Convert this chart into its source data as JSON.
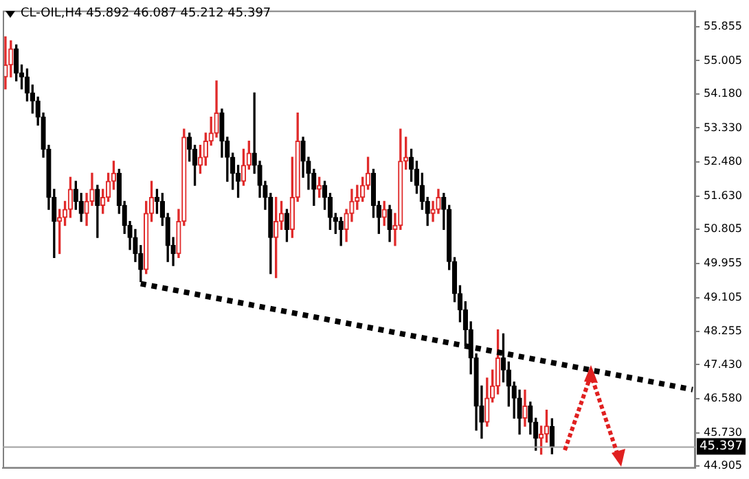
{
  "chart_data": {
    "type": "candlestick",
    "title": "CL-OIL,H4 45.892 46.087 45.212 45.397",
    "categories": [
      null,
      null,
      null,
      null,
      null,
      null,
      null,
      null,
      null,
      null,
      null,
      null,
      null,
      null,
      null,
      null,
      null,
      null,
      null,
      null,
      null,
      null,
      null,
      null,
      null,
      null,
      null,
      null,
      null,
      null,
      null,
      null,
      null,
      null,
      null,
      null,
      null,
      null,
      null,
      null,
      null,
      null,
      null,
      null,
      null,
      null,
      null,
      null,
      null,
      null,
      null,
      null,
      null,
      null,
      null,
      null,
      null,
      null,
      null,
      null,
      null,
      null,
      null,
      null,
      null,
      null,
      null,
      null,
      null,
      null,
      null,
      null,
      null,
      null,
      null,
      null,
      null,
      null,
      null,
      null,
      null,
      null,
      null,
      null,
      null,
      null,
      null,
      null,
      null,
      null,
      null,
      null,
      null,
      null,
      null,
      null,
      null,
      null,
      null,
      null,
      null,
      null,
      null,
      null,
      null,
      null,
      null,
      null,
      null,
      null,
      null,
      null,
      null,
      null,
      null,
      null,
      null,
      null,
      null,
      null,
      null,
      null,
      null,
      null,
      null,
      null,
      null,
      null
    ],
    "ohlc": [
      [
        54.6,
        55.6,
        54.3,
        54.9
      ],
      [
        54.9,
        55.5,
        54.6,
        55.3
      ],
      [
        55.3,
        55.4,
        54.5,
        54.7
      ],
      [
        54.7,
        54.9,
        54.3,
        54.6
      ],
      [
        54.6,
        54.8,
        54.0,
        54.2
      ],
      [
        54.2,
        54.4,
        53.7,
        54.0
      ],
      [
        54.0,
        54.1,
        53.4,
        53.6
      ],
      [
        53.6,
        53.7,
        52.6,
        52.8
      ],
      [
        52.8,
        52.9,
        51.3,
        51.6
      ],
      [
        51.6,
        51.8,
        50.1,
        51.0
      ],
      [
        51.0,
        51.3,
        50.2,
        51.1
      ],
      [
        51.1,
        51.5,
        50.9,
        51.3
      ],
      [
        51.3,
        52.1,
        51.1,
        51.8
      ],
      [
        51.8,
        52.0,
        51.3,
        51.5
      ],
      [
        51.5,
        51.7,
        51.0,
        51.2
      ],
      [
        51.2,
        51.7,
        50.9,
        51.5
      ],
      [
        51.5,
        52.2,
        51.4,
        51.8
      ],
      [
        51.8,
        51.9,
        50.6,
        51.4
      ],
      [
        51.4,
        51.8,
        51.2,
        51.6
      ],
      [
        51.6,
        52.2,
        51.5,
        52.0
      ],
      [
        52.0,
        52.5,
        51.8,
        52.2
      ],
      [
        52.2,
        52.3,
        51.2,
        51.4
      ],
      [
        51.4,
        51.5,
        50.7,
        50.9
      ],
      [
        50.9,
        51.0,
        50.3,
        50.6
      ],
      [
        50.6,
        50.8,
        50.0,
        50.2
      ],
      [
        50.2,
        50.4,
        49.5,
        49.8
      ],
      [
        49.8,
        51.5,
        49.7,
        51.2
      ],
      [
        51.2,
        52.0,
        51.0,
        51.6
      ],
      [
        51.6,
        51.8,
        51.2,
        51.5
      ],
      [
        51.5,
        51.7,
        50.9,
        51.1
      ],
      [
        51.1,
        51.2,
        50.0,
        50.4
      ],
      [
        50.4,
        50.6,
        49.9,
        50.2
      ],
      [
        50.2,
        51.3,
        50.1,
        51.0
      ],
      [
        51.0,
        53.3,
        50.9,
        53.1
      ],
      [
        53.1,
        53.2,
        52.5,
        52.8
      ],
      [
        52.8,
        52.9,
        51.9,
        52.4
      ],
      [
        52.4,
        52.9,
        52.2,
        52.6
      ],
      [
        52.6,
        53.2,
        52.4,
        53.0
      ],
      [
        53.0,
        53.6,
        52.9,
        53.2
      ],
      [
        53.2,
        54.5,
        53.1,
        53.7
      ],
      [
        53.7,
        53.8,
        52.6,
        53.0
      ],
      [
        53.0,
        53.1,
        52.0,
        52.6
      ],
      [
        52.6,
        52.7,
        51.8,
        52.2
      ],
      [
        52.2,
        52.4,
        51.6,
        52.0
      ],
      [
        52.0,
        52.8,
        51.9,
        52.4
      ],
      [
        52.4,
        53.0,
        52.3,
        52.7
      ],
      [
        52.7,
        54.2,
        52.2,
        52.4
      ],
      [
        52.4,
        52.5,
        51.6,
        51.9
      ],
      [
        51.9,
        52.0,
        51.3,
        51.6
      ],
      [
        51.6,
        51.7,
        49.7,
        50.6
      ],
      [
        50.6,
        51.6,
        49.6,
        51.0
      ],
      [
        51.0,
        51.5,
        50.8,
        51.2
      ],
      [
        51.2,
        51.3,
        50.5,
        50.8
      ],
      [
        50.8,
        52.6,
        50.6,
        51.6
      ],
      [
        51.6,
        53.7,
        51.5,
        53.0
      ],
      [
        53.0,
        53.1,
        52.1,
        52.5
      ],
      [
        52.5,
        52.6,
        51.8,
        52.2
      ],
      [
        52.2,
        52.3,
        51.4,
        51.8
      ],
      [
        51.8,
        52.1,
        51.6,
        51.9
      ],
      [
        51.9,
        52.0,
        51.3,
        51.6
      ],
      [
        51.6,
        51.7,
        50.8,
        51.1
      ],
      [
        51.1,
        51.2,
        50.7,
        51.0
      ],
      [
        51.0,
        51.1,
        50.4,
        50.8
      ],
      [
        50.8,
        51.3,
        50.5,
        51.2
      ],
      [
        51.2,
        51.8,
        51.0,
        51.5
      ],
      [
        51.5,
        51.9,
        51.3,
        51.6
      ],
      [
        51.6,
        52.1,
        51.5,
        51.9
      ],
      [
        51.9,
        52.6,
        51.8,
        52.2
      ],
      [
        52.2,
        52.3,
        51.1,
        51.4
      ],
      [
        51.4,
        51.5,
        50.7,
        51.1
      ],
      [
        51.1,
        51.5,
        50.9,
        51.3
      ],
      [
        51.3,
        51.4,
        50.5,
        50.8
      ],
      [
        50.8,
        51.2,
        50.4,
        50.9
      ],
      [
        50.9,
        53.3,
        50.8,
        52.5
      ],
      [
        52.5,
        53.1,
        52.3,
        52.6
      ],
      [
        52.6,
        52.8,
        52.0,
        52.3
      ],
      [
        52.3,
        52.5,
        51.7,
        51.9
      ],
      [
        51.9,
        52.2,
        51.3,
        51.5
      ],
      [
        51.5,
        51.6,
        50.9,
        51.2
      ],
      [
        51.2,
        51.5,
        51.0,
        51.3
      ],
      [
        51.3,
        51.8,
        51.2,
        51.6
      ],
      [
        51.6,
        51.7,
        50.8,
        51.3
      ],
      [
        51.3,
        51.4,
        49.8,
        50.0
      ],
      [
        50.0,
        50.1,
        49.0,
        49.2
      ],
      [
        49.2,
        49.4,
        48.5,
        48.8
      ],
      [
        48.8,
        49.0,
        47.9,
        48.3
      ],
      [
        48.3,
        48.5,
        47.2,
        47.6
      ],
      [
        47.6,
        47.7,
        45.8,
        46.4
      ],
      [
        46.4,
        46.9,
        45.6,
        46.0
      ],
      [
        46.0,
        47.1,
        45.9,
        46.6
      ],
      [
        46.6,
        47.3,
        46.5,
        46.9
      ],
      [
        46.9,
        48.3,
        46.7,
        47.6
      ],
      [
        47.6,
        48.2,
        47.0,
        47.3
      ],
      [
        47.3,
        47.5,
        46.4,
        46.9
      ],
      [
        46.9,
        47.0,
        46.1,
        46.6
      ],
      [
        46.6,
        46.8,
        45.7,
        46.1
      ],
      [
        46.1,
        46.8,
        45.9,
        46.4
      ],
      [
        46.4,
        46.5,
        45.7,
        46.0
      ],
      [
        46.0,
        46.1,
        45.3,
        45.6
      ],
      [
        45.6,
        45.9,
        45.2,
        45.7
      ],
      [
        45.7,
        46.3,
        45.5,
        45.9
      ],
      [
        45.892,
        46.087,
        45.212,
        45.397
      ],
      null,
      null,
      null,
      null,
      null,
      null,
      null,
      null,
      null,
      null,
      null,
      null,
      null,
      null,
      null,
      null,
      null,
      null,
      null,
      null,
      null,
      null,
      null,
      null,
      null,
      null
    ],
    "series": [
      {
        "type": "line",
        "color": "#000000",
        "line_style": "dotted",
        "values": [
          null,
          null,
          null,
          null,
          null,
          null,
          null,
          null,
          null,
          null,
          null,
          null,
          null,
          null,
          null,
          null,
          null,
          null,
          null,
          null,
          null,
          null,
          null,
          null,
          null,
          49.45,
          null,
          null,
          null,
          null,
          null,
          null,
          null,
          null,
          null,
          null,
          null,
          null,
          null,
          null,
          null,
          null,
          null,
          null,
          null,
          null,
          null,
          null,
          null,
          null,
          null,
          null,
          null,
          null,
          null,
          null,
          null,
          null,
          null,
          null,
          null,
          null,
          null,
          null,
          null,
          null,
          null,
          null,
          null,
          null,
          null,
          null,
          null,
          null,
          null,
          null,
          null,
          null,
          null,
          null,
          null,
          null,
          null,
          null,
          null,
          null,
          null,
          null,
          null,
          null,
          null,
          null,
          null,
          null,
          null,
          null,
          null,
          null,
          null,
          null,
          null,
          null,
          null,
          null,
          null,
          null,
          null,
          null,
          null,
          null,
          null,
          null,
          null,
          null,
          null,
          null,
          null,
          null,
          null,
          null,
          null,
          null,
          null,
          null,
          null,
          null,
          null,
          46.81
        ]
      }
    ],
    "ylim": [
      44.85,
      56.25
    ],
    "yticks": [
      {
        "value": 44.905,
        "label": "44.905"
      },
      {
        "value": 45.73,
        "label": "45.730"
      },
      {
        "value": 46.58,
        "label": "46.580"
      },
      {
        "value": 47.43,
        "label": "47.430"
      },
      {
        "value": 48.255,
        "label": "48.255"
      },
      {
        "value": 49.105,
        "label": "49.105"
      },
      {
        "value": 49.955,
        "label": "49.955"
      },
      {
        "value": 50.805,
        "label": "50.805"
      },
      {
        "value": 51.63,
        "label": "51.630"
      },
      {
        "value": 52.48,
        "label": "52.480"
      },
      {
        "value": 53.33,
        "label": "53.330"
      },
      {
        "value": 54.18,
        "label": "54.180"
      },
      {
        "value": 55.005,
        "label": "55.005"
      },
      {
        "value": 55.855,
        "label": "55.855"
      }
    ],
    "ref_lines": [
      {
        "axis": "y",
        "value": 45.397,
        "label": "45.397",
        "color": "#a0a0a0"
      }
    ],
    "tick_labels": "y"
  }
}
